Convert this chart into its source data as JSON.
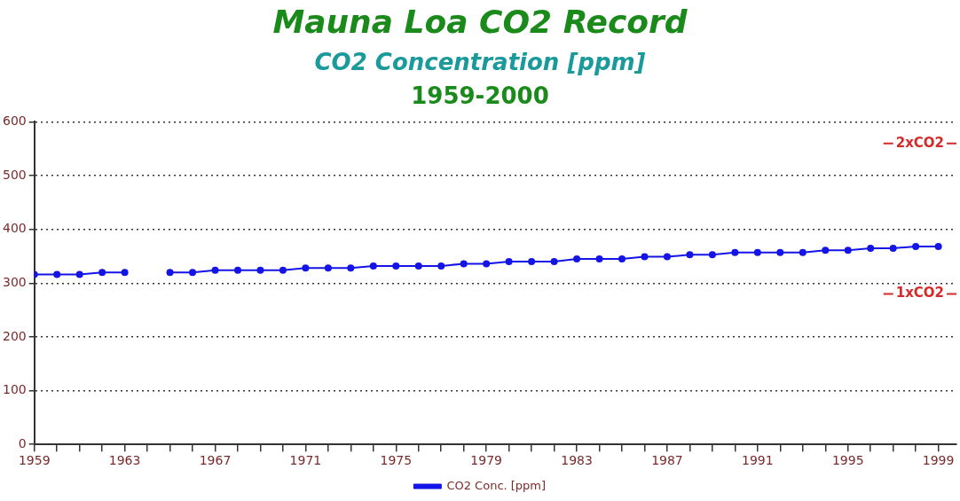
{
  "chart_data": {
    "type": "line",
    "title": "Mauna Loa CO2 Record",
    "subtitle": "CO2 Concentration [ppm]",
    "annotations": [
      "1959-2000"
    ],
    "ref_lines": [
      {
        "axis": "y",
        "value": 560,
        "label": "2xCO2",
        "color": "#d42a2a"
      },
      {
        "axis": "y",
        "value": 280,
        "label": "1xCO2",
        "color": "#d42a2a"
      }
    ],
    "x": [
      1959,
      1960,
      1961,
      1962,
      1963,
      1964,
      1965,
      1966,
      1967,
      1968,
      1969,
      1970,
      1971,
      1972,
      1973,
      1974,
      1975,
      1976,
      1977,
      1978,
      1979,
      1980,
      1981,
      1982,
      1983,
      1984,
      1985,
      1986,
      1987,
      1988,
      1989,
      1990,
      1991,
      1992,
      1993,
      1994,
      1995,
      1996,
      1997,
      1998,
      1999
    ],
    "series": [
      {
        "name": "CO2 Conc. [ppm]",
        "color": "#1414e6",
        "values": [
          316,
          316,
          316,
          320,
          320,
          null,
          320,
          320,
          324,
          324,
          324,
          324,
          328,
          328,
          328,
          332,
          332,
          332,
          332,
          336,
          336,
          340,
          340,
          340,
          345,
          345,
          345,
          349,
          349,
          353,
          353,
          357,
          357,
          357,
          357,
          361,
          361,
          365,
          365,
          368,
          368
        ]
      }
    ],
    "xlim": [
      1959,
      1999.8
    ],
    "xticks": [
      1959,
      {
        "value": 1960,
        "label": null
      },
      {
        "value": 1961,
        "label": null
      },
      {
        "value": 1962,
        "label": null
      },
      1963,
      {
        "value": 1964,
        "label": null
      },
      {
        "value": 1965,
        "label": null
      },
      {
        "value": 1966,
        "label": null
      },
      1967,
      {
        "value": 1968,
        "label": null
      },
      {
        "value": 1969,
        "label": null
      },
      {
        "value": 1970,
        "label": null
      },
      1971,
      {
        "value": 1972,
        "label": null
      },
      {
        "value": 1973,
        "label": null
      },
      {
        "value": 1974,
        "label": null
      },
      1975,
      {
        "value": 1976,
        "label": null
      },
      {
        "value": 1977,
        "label": null
      },
      {
        "value": 1978,
        "label": null
      },
      1979,
      {
        "value": 1980,
        "label": null
      },
      {
        "value": 1981,
        "label": null
      },
      {
        "value": 1982,
        "label": null
      },
      1983,
      {
        "value": 1984,
        "label": null
      },
      {
        "value": 1985,
        "label": null
      },
      {
        "value": 1986,
        "label": null
      },
      1987,
      {
        "value": 1988,
        "label": null
      },
      {
        "value": 1989,
        "label": null
      },
      {
        "value": 1990,
        "label": null
      },
      1991,
      {
        "value": 1992,
        "label": null
      },
      {
        "value": 1993,
        "label": null
      },
      {
        "value": 1994,
        "label": null
      },
      1995,
      {
        "value": 1996,
        "label": null
      },
      {
        "value": 1997,
        "label": null
      },
      {
        "value": 1998,
        "label": null
      },
      1999
    ],
    "ylim": [
      0,
      600
    ],
    "yticks": [
      0,
      100,
      200,
      300,
      400,
      500,
      600
    ],
    "grid": "y",
    "legend": "bottom",
    "marker": "circle",
    "line_style": "solid"
  }
}
